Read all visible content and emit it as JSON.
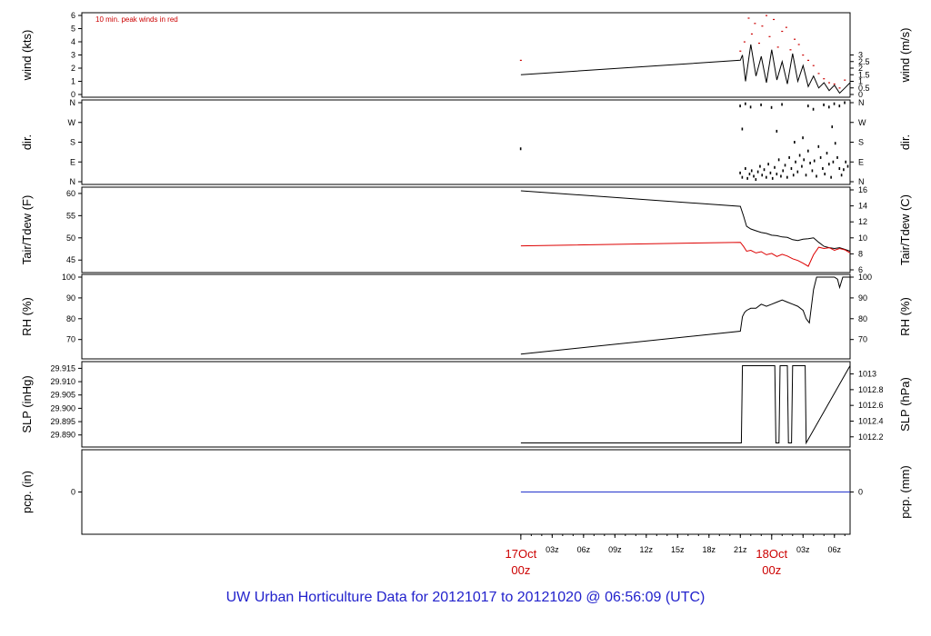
{
  "title": "UW Urban Horticulture Data for 20121017  to  20121020 @ 06:56:09  (UTC)",
  "colors": {
    "peak": "#cc0000",
    "main": "#000000",
    "dew": "#dd0000",
    "pcp": "#2233cc",
    "day": "#cc0000",
    "title": "#2222cc"
  },
  "chart_data": [
    {
      "id": "wind",
      "type": "line",
      "annotation": "10 min. peak winds in red",
      "ylabel_left": "wind (kts)",
      "ylabel_right": "wind (m/s)",
      "ylim": [
        0,
        6
      ],
      "yticks_left": [
        0,
        1,
        2,
        3,
        4,
        5,
        6
      ],
      "yticks_right": [
        {
          "value": 0,
          "label": "0"
        },
        {
          "value": 0.5,
          "label": "0.5"
        },
        {
          "value": 1,
          "label": "1"
        },
        {
          "value": 1.5,
          "label": "1.5"
        },
        {
          "value": 2,
          "label": "2"
        },
        {
          "value": 2.5,
          "label": "2.5"
        },
        {
          "value": 3,
          "label": "3"
        }
      ],
      "series": [
        {
          "role": "main",
          "x": [
            0,
            21,
            21.2,
            21.5,
            22,
            22.5,
            23,
            23.5,
            24,
            24.5,
            25,
            25.5,
            26,
            26.5,
            27,
            27.5,
            28,
            28.5,
            29,
            29.5,
            30,
            30.5,
            31,
            31.5
          ],
          "y": [
            1.5,
            2.6,
            3.0,
            1.0,
            3.8,
            1.4,
            2.9,
            0.9,
            3.4,
            1.1,
            2.5,
            0.8,
            3.1,
            1.0,
            2.2,
            0.6,
            1.4,
            0.5,
            0.9,
            0.3,
            0.7,
            0.1,
            0.5,
            0.9
          ]
        },
        {
          "role": "peak",
          "x": [
            0,
            21,
            21.4,
            21.8,
            22.1,
            22.4,
            22.8,
            23.1,
            23.5,
            23.8,
            24.2,
            24.6,
            25,
            25.4,
            25.8,
            26.2,
            26.6,
            27,
            27.5,
            28,
            28.5,
            29,
            29.5,
            30,
            30.5,
            31
          ],
          "y": [
            2.6,
            3.3,
            4.0,
            5.8,
            4.6,
            5.4,
            3.9,
            5.2,
            6.0,
            4.4,
            5.7,
            3.6,
            4.8,
            5.1,
            3.4,
            4.2,
            3.8,
            3.0,
            2.6,
            2.2,
            1.6,
            1.2,
            0.9,
            0.8,
            0.5,
            1.1
          ]
        }
      ]
    },
    {
      "id": "dir",
      "type": "scatter",
      "ylabel_left": "dir.",
      "ylabel_right": "dir.",
      "ylim": [
        0,
        360
      ],
      "yticks_left": [
        {
          "value": 0,
          "label": "N"
        },
        {
          "value": 90,
          "label": "E"
        },
        {
          "value": 180,
          "label": "S"
        },
        {
          "value": 270,
          "label": "W"
        },
        {
          "value": 360,
          "label": "N"
        }
      ],
      "yticks_right": [
        {
          "value": 0,
          "label": "N"
        },
        {
          "value": 90,
          "label": "E"
        },
        {
          "value": 180,
          "label": "S"
        },
        {
          "value": 270,
          "label": "W"
        },
        {
          "value": 360,
          "label": "N"
        }
      ],
      "series": [
        {
          "role": "main",
          "x": [
            0,
            21,
            21.2,
            21.5,
            21.7,
            21.9,
            22.1,
            22.3,
            22.5,
            22.7,
            22.9,
            23.1,
            23.3,
            23.5,
            23.7,
            23.9,
            24.1,
            24.3,
            24.5,
            24.7,
            24.9,
            25.1,
            25.3,
            25.5,
            25.7,
            25.9,
            26.1,
            26.3,
            26.5,
            26.7,
            26.9,
            27.1,
            27.3,
            27.5,
            27.7,
            27.9,
            28.1,
            28.3,
            28.5,
            28.7,
            28.9,
            29.1,
            29.3,
            29.5,
            29.7,
            29.9,
            30.1,
            30.3,
            30.5,
            30.7,
            30.9,
            31.1,
            31.3,
            21.0,
            21.5,
            22.0,
            23.0,
            24.0,
            25.0,
            27.5,
            28.0,
            29.0,
            29.5,
            30.0,
            30.5,
            31.0,
            21.2,
            24.5,
            26.2,
            27.0,
            29.8
          ],
          "y": [
            150,
            40,
            20,
            60,
            15,
            35,
            50,
            25,
            10,
            45,
            70,
            30,
            55,
            20,
            80,
            40,
            15,
            65,
            35,
            100,
            25,
            50,
            75,
            20,
            110,
            60,
            30,
            90,
            45,
            120,
            70,
            100,
            30,
            140,
            85,
            50,
            95,
            25,
            160,
            110,
            60,
            35,
            130,
            80,
            20,
            90,
            175,
            110,
            60,
            30,
            55,
            90,
            70,
            345,
            355,
            340,
            350,
            338,
            352,
            345,
            330,
            350,
            340,
            355,
            345,
            360,
            240,
            230,
            180,
            200,
            250
          ]
        }
      ]
    },
    {
      "id": "temp",
      "type": "line",
      "ylabel_left": "Tair/Tdew (F)",
      "ylabel_right": "Tair/Tdew (C)",
      "ylim": [
        42.8,
        60.8
      ],
      "yticks_left": [
        45,
        50,
        55,
        60
      ],
      "yticks_right": [
        {
          "value": 42.8,
          "label": "6"
        },
        {
          "value": 46.4,
          "label": "8"
        },
        {
          "value": 50.0,
          "label": "10"
        },
        {
          "value": 53.6,
          "label": "12"
        },
        {
          "value": 57.2,
          "label": "14"
        },
        {
          "value": 60.8,
          "label": "16"
        }
      ],
      "series": [
        {
          "role": "main",
          "x": [
            0,
            21,
            21.3,
            21.6,
            22,
            22.5,
            23,
            23.5,
            24,
            24.5,
            25,
            25.5,
            26,
            26.5,
            27,
            27.5,
            28,
            28.5,
            29,
            29.5,
            30,
            30.5,
            31,
            31.5
          ],
          "y": [
            60.6,
            57.1,
            55.0,
            52.6,
            52.0,
            51.6,
            51.2,
            51.0,
            50.6,
            50.5,
            50.2,
            50.1,
            49.6,
            49.4,
            49.7,
            49.8,
            50.0,
            49.0,
            48.1,
            47.8,
            47.6,
            47.8,
            47.4,
            47.0
          ]
        },
        {
          "role": "dew",
          "x": [
            0,
            21,
            21.3,
            21.6,
            22,
            22.5,
            23,
            23.5,
            24,
            24.5,
            25,
            25.5,
            26,
            26.5,
            27,
            27.5,
            28,
            28.5,
            29,
            29.5,
            30,
            30.5,
            31,
            31.5
          ],
          "y": [
            48.2,
            49.0,
            48.1,
            47.0,
            47.2,
            46.6,
            46.9,
            46.2,
            46.5,
            45.8,
            46.3,
            45.9,
            45.3,
            44.9,
            44.3,
            43.6,
            46.2,
            47.9,
            47.6,
            47.8,
            47.2,
            47.6,
            47.3,
            46.6
          ]
        }
      ]
    },
    {
      "id": "rh",
      "type": "line",
      "ylabel_left": "RH (%)",
      "ylabel_right": "RH (%)",
      "ylim": [
        62,
        100
      ],
      "yticks_left": [
        70,
        80,
        90,
        100
      ],
      "yticks_right": [
        {
          "value": 70,
          "label": "70"
        },
        {
          "value": 80,
          "label": "80"
        },
        {
          "value": 90,
          "label": "90"
        },
        {
          "value": 100,
          "label": "100"
        }
      ],
      "series": [
        {
          "role": "main",
          "x": [
            0,
            21,
            21.2,
            21.4,
            21.6,
            22,
            22.5,
            23,
            23.5,
            24,
            24.5,
            25,
            25.5,
            26,
            26.5,
            27,
            27.3,
            27.6,
            28,
            28.3,
            28.6,
            29,
            29.5,
            30,
            30.3,
            30.5,
            30.8,
            31,
            31.3,
            31.5
          ],
          "y": [
            63,
            74,
            81,
            83,
            84,
            85,
            85,
            87,
            86,
            87,
            88,
            89,
            88,
            87,
            86,
            84,
            80,
            78,
            94,
            100,
            100,
            100,
            100,
            100,
            99,
            95,
            100,
            100,
            100,
            100
          ]
        }
      ]
    },
    {
      "id": "slp",
      "type": "line",
      "ylabel_left": "SLP (inHg)",
      "ylabel_right": "SLP (hPa)",
      "ylim": [
        29.8865,
        29.9165
      ],
      "yticks_left": [
        {
          "value": 29.89,
          "label": "29.890"
        },
        {
          "value": 29.895,
          "label": "29.895"
        },
        {
          "value": 29.9,
          "label": "29.900"
        },
        {
          "value": 29.905,
          "label": "29.905"
        },
        {
          "value": 29.91,
          "label": "29.910"
        },
        {
          "value": 29.915,
          "label": "29.915"
        }
      ],
      "yticks_right": [
        {
          "value": 29.8893,
          "label": "1012.2"
        },
        {
          "value": 29.8952,
          "label": "1012.4"
        },
        {
          "value": 29.9011,
          "label": "1012.6"
        },
        {
          "value": 29.907,
          "label": "1012.8"
        },
        {
          "value": 29.9129,
          "label": "1013"
        }
      ],
      "series": [
        {
          "role": "main",
          "x": [
            0,
            21.1,
            21.2,
            24.3,
            24.4,
            24.7,
            24.8,
            25.5,
            25.6,
            25.9,
            26.0,
            27.2,
            27.3,
            31.5
          ],
          "y": [
            29.887,
            29.887,
            29.916,
            29.916,
            29.887,
            29.887,
            29.916,
            29.916,
            29.887,
            29.887,
            29.916,
            29.916,
            29.887,
            29.916
          ]
        }
      ]
    },
    {
      "id": "pcp",
      "type": "line",
      "ylabel_left": "pcp. (in)",
      "ylabel_right": "pcp. (mm)",
      "ylim": [
        -1,
        1
      ],
      "yticks_left": [
        {
          "value": 0,
          "label": "0"
        }
      ],
      "yticks_right": [
        {
          "value": 0,
          "label": "0"
        }
      ],
      "series": [
        {
          "role": "pcp",
          "x": [
            0,
            31.5
          ],
          "y": [
            0,
            0
          ]
        }
      ]
    }
  ],
  "xaxis": {
    "range": [
      -42,
      31.5
    ],
    "ticks": [
      {
        "value": 3,
        "label": "03z"
      },
      {
        "value": 6,
        "label": "06z"
      },
      {
        "value": 9,
        "label": "09z"
      },
      {
        "value": 12,
        "label": "12z"
      },
      {
        "value": 15,
        "label": "15z"
      },
      {
        "value": 18,
        "label": "18z"
      },
      {
        "value": 21,
        "label": "21z"
      },
      {
        "value": 27,
        "label": "03z"
      },
      {
        "value": 30,
        "label": "06z"
      }
    ],
    "day_labels": [
      {
        "value": 0,
        "date": "17Oct",
        "hour": "00z"
      },
      {
        "value": 24,
        "date": "18Oct",
        "hour": "00z"
      }
    ]
  }
}
